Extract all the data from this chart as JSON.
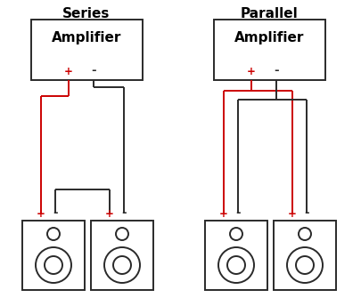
{
  "bg_color": "#ffffff",
  "title_series": "Series",
  "title_parallel": "Parallel",
  "amp_label": "Amplifier",
  "wire_black": "#2a2a2a",
  "wire_red": "#cc0000",
  "plus_color": "#cc0000",
  "minus_color": "#2a2a2a",
  "box_color": "#2a2a2a",
  "title_fontsize": 11,
  "amp_fontsize": 11,
  "terminal_fontsize": 8.5
}
